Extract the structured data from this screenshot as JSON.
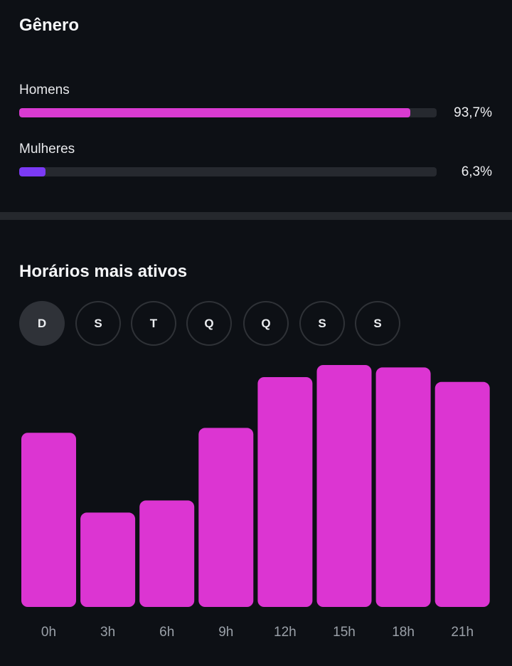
{
  "gender": {
    "title": "Gênero",
    "items": [
      {
        "label": "Homens",
        "percent_text": "93,7%",
        "value": 93.7,
        "color": "#d93bd1"
      },
      {
        "label": "Mulheres",
        "percent_text": "6,3%",
        "value": 6.3,
        "color": "#7b3af5"
      }
    ]
  },
  "hours": {
    "title": "Horários mais ativos",
    "days": [
      {
        "label": "D",
        "active": true
      },
      {
        "label": "S",
        "active": false
      },
      {
        "label": "T",
        "active": false
      },
      {
        "label": "Q",
        "active": false
      },
      {
        "label": "Q",
        "active": false
      },
      {
        "label": "S",
        "active": false
      },
      {
        "label": "S",
        "active": false
      }
    ]
  },
  "chart_data": {
    "type": "bar",
    "categories": [
      "0h",
      "3h",
      "6h",
      "9h",
      "12h",
      "15h",
      "18h",
      "21h"
    ],
    "values": [
      72,
      39,
      44,
      74,
      95,
      100,
      99,
      93
    ],
    "ylim": [
      0,
      100
    ],
    "color": "#dc35d2",
    "grid": false
  }
}
